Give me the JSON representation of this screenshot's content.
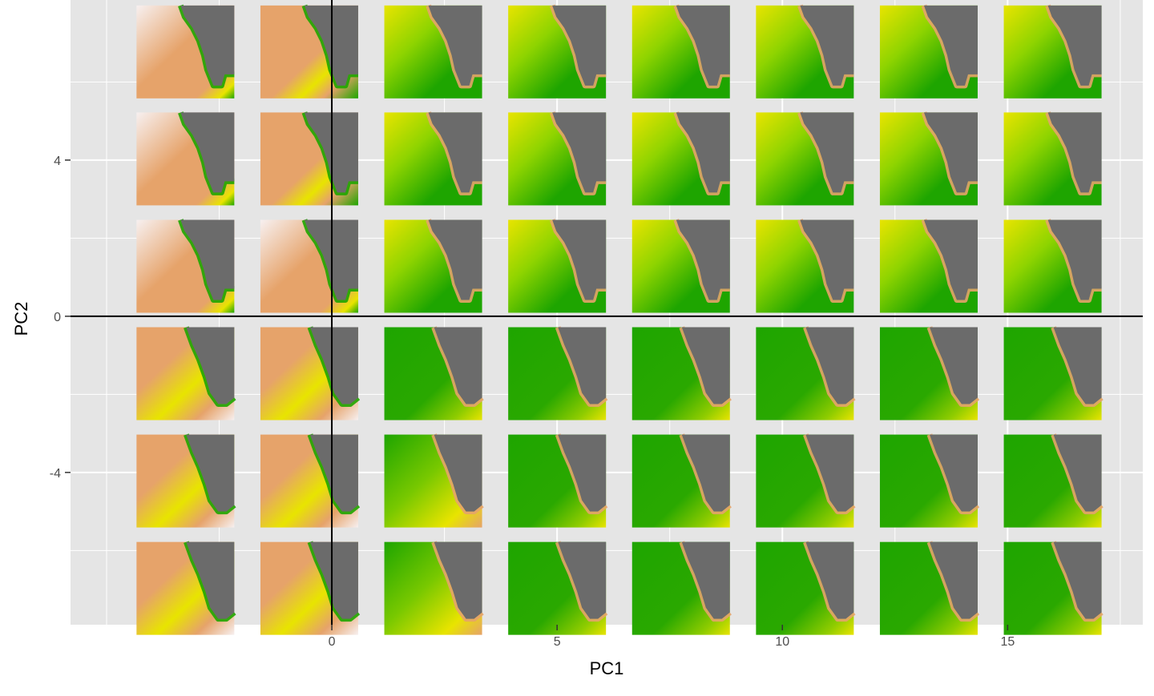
{
  "chart_data": {
    "type": "scatter",
    "title": "",
    "xlabel": "PC1",
    "ylabel": "PC2",
    "xlim": [
      -5.8,
      18.0
    ],
    "ylim": [
      -7.9,
      8.1
    ],
    "x_ticks": [
      0,
      5,
      10,
      15
    ],
    "x_tick_labels": [
      "0",
      "5",
      "10",
      "15"
    ],
    "y_ticks": [
      -4,
      0,
      4
    ],
    "y_tick_labels": [
      "-4",
      "0",
      "4"
    ],
    "grid": true,
    "reference_lines": {
      "x": 0,
      "y": 0
    },
    "marker": "map-thumbnail",
    "grid_x_centers": [
      -3.25,
      -0.5,
      2.25,
      5.0,
      7.75,
      10.5,
      13.25,
      16.0
    ],
    "grid_y_centers": [
      6.77,
      4.03,
      1.28,
      -1.47,
      -4.22,
      -6.97
    ],
    "colors": {
      "panel_background": "#e5e5e5",
      "grid_line": "#ffffff",
      "land": "#6b6b6b",
      "low": "#1ea500",
      "mid": "#e8e400",
      "high": "#e6a36a",
      "peak": "#f7f0f0"
    },
    "series": [
      {
        "name": "",
        "points": [
          {
            "x": -3.25,
            "y": 6.77,
            "pattern": "warm",
            "shape": 0
          },
          {
            "x": -0.5,
            "y": 6.77,
            "pattern": "warm-banded",
            "shape": 0
          },
          {
            "x": 2.25,
            "y": 6.77,
            "pattern": "green-band",
            "shape": 0
          },
          {
            "x": 5.0,
            "y": 6.77,
            "pattern": "green-band",
            "shape": 0
          },
          {
            "x": 7.75,
            "y": 6.77,
            "pattern": "green-band",
            "shape": 0
          },
          {
            "x": 10.5,
            "y": 6.77,
            "pattern": "green-band",
            "shape": 0
          },
          {
            "x": 13.25,
            "y": 6.77,
            "pattern": "green-band",
            "shape": 0
          },
          {
            "x": 16.0,
            "y": 6.77,
            "pattern": "green-band",
            "shape": 0
          },
          {
            "x": -3.25,
            "y": 4.03,
            "pattern": "warm",
            "shape": 0
          },
          {
            "x": -0.5,
            "y": 4.03,
            "pattern": "warm-banded",
            "shape": 0
          },
          {
            "x": 2.25,
            "y": 4.03,
            "pattern": "green-band",
            "shape": 0
          },
          {
            "x": 5.0,
            "y": 4.03,
            "pattern": "green-band",
            "shape": 0
          },
          {
            "x": 7.75,
            "y": 4.03,
            "pattern": "green-band",
            "shape": 0
          },
          {
            "x": 10.5,
            "y": 4.03,
            "pattern": "green-band",
            "shape": 0
          },
          {
            "x": 13.25,
            "y": 4.03,
            "pattern": "green-band",
            "shape": 0
          },
          {
            "x": 16.0,
            "y": 4.03,
            "pattern": "green-band",
            "shape": 0
          },
          {
            "x": -3.25,
            "y": 1.28,
            "pattern": "warm",
            "shape": 0
          },
          {
            "x": -0.5,
            "y": 1.28,
            "pattern": "warm",
            "shape": 0
          },
          {
            "x": 2.25,
            "y": 1.28,
            "pattern": "green-band",
            "shape": 0
          },
          {
            "x": 5.0,
            "y": 1.28,
            "pattern": "green-band",
            "shape": 0
          },
          {
            "x": 7.75,
            "y": 1.28,
            "pattern": "green-band",
            "shape": 0
          },
          {
            "x": 10.5,
            "y": 1.28,
            "pattern": "green-band",
            "shape": 0
          },
          {
            "x": 13.25,
            "y": 1.28,
            "pattern": "green-band",
            "shape": 0
          },
          {
            "x": 16.0,
            "y": 1.28,
            "pattern": "green-band",
            "shape": 0
          },
          {
            "x": -3.25,
            "y": -1.47,
            "pattern": "warm-green-coast",
            "shape": 1
          },
          {
            "x": -0.5,
            "y": -1.47,
            "pattern": "warm-green-coast",
            "shape": 1
          },
          {
            "x": 2.25,
            "y": -1.47,
            "pattern": "green",
            "shape": 1
          },
          {
            "x": 5.0,
            "y": -1.47,
            "pattern": "green",
            "shape": 1
          },
          {
            "x": 7.75,
            "y": -1.47,
            "pattern": "green",
            "shape": 1
          },
          {
            "x": 10.5,
            "y": -1.47,
            "pattern": "green",
            "shape": 1
          },
          {
            "x": 13.25,
            "y": -1.47,
            "pattern": "green",
            "shape": 1
          },
          {
            "x": 16.0,
            "y": -1.47,
            "pattern": "green",
            "shape": 1
          },
          {
            "x": -3.25,
            "y": -4.22,
            "pattern": "warm-green-coast",
            "shape": 1
          },
          {
            "x": -0.5,
            "y": -4.22,
            "pattern": "warm-green-coast",
            "shape": 1
          },
          {
            "x": 2.25,
            "y": -4.22,
            "pattern": "green-yellow",
            "shape": 1
          },
          {
            "x": 5.0,
            "y": -4.22,
            "pattern": "green",
            "shape": 1
          },
          {
            "x": 7.75,
            "y": -4.22,
            "pattern": "green",
            "shape": 1
          },
          {
            "x": 10.5,
            "y": -4.22,
            "pattern": "green",
            "shape": 1
          },
          {
            "x": 13.25,
            "y": -4.22,
            "pattern": "green",
            "shape": 1
          },
          {
            "x": 16.0,
            "y": -4.22,
            "pattern": "green",
            "shape": 1
          },
          {
            "x": -3.25,
            "y": -6.97,
            "pattern": "warm-green-coast",
            "shape": 1
          },
          {
            "x": -0.5,
            "y": -6.97,
            "pattern": "warm-green-coast",
            "shape": 1
          },
          {
            "x": 2.25,
            "y": -6.97,
            "pattern": "green-yellow",
            "shape": 1
          },
          {
            "x": 5.0,
            "y": -6.97,
            "pattern": "green",
            "shape": 1
          },
          {
            "x": 7.75,
            "y": -6.97,
            "pattern": "green",
            "shape": 1
          },
          {
            "x": 10.5,
            "y": -6.97,
            "pattern": "green",
            "shape": 1
          },
          {
            "x": 13.25,
            "y": -6.97,
            "pattern": "green",
            "shape": 1
          },
          {
            "x": 16.0,
            "y": -6.97,
            "pattern": "green",
            "shape": 1
          }
        ]
      }
    ]
  }
}
